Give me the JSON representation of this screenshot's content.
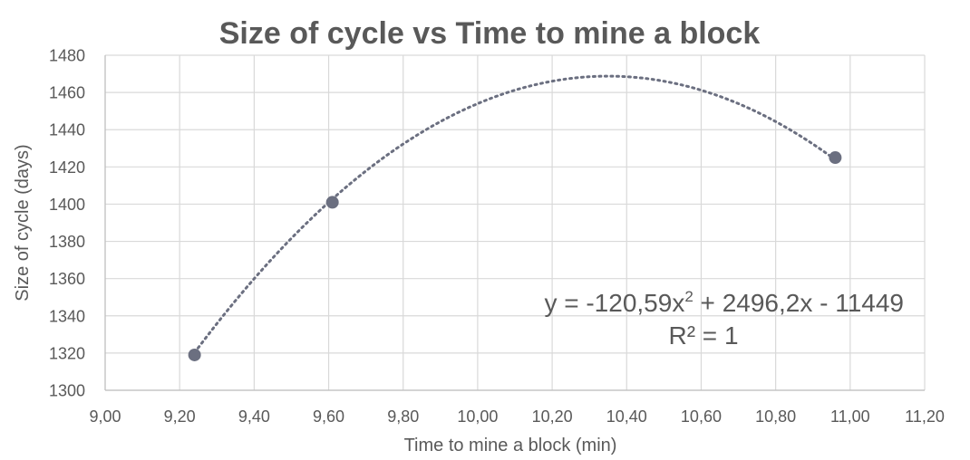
{
  "chart_data": {
    "type": "scatter",
    "title": "Size of cycle vs Time to mine a block",
    "xlabel": "Time to mine a block (min)",
    "ylabel": "Size of cycle (days)",
    "xlim": [
      9.0,
      11.2
    ],
    "ylim": [
      1300,
      1480
    ],
    "x_ticks": [
      "9,00",
      "9,20",
      "9,40",
      "9,60",
      "9,80",
      "10,00",
      "10,20",
      "10,40",
      "10,60",
      "10,80",
      "11,00",
      "11,20"
    ],
    "y_ticks": [
      "1300",
      "1320",
      "1340",
      "1360",
      "1380",
      "1400",
      "1420",
      "1440",
      "1460",
      "1480"
    ],
    "grid": true,
    "series": [
      {
        "name": "Size of cycle",
        "x": [
          9.24,
          9.61,
          10.96
        ],
        "y": [
          1319,
          1401,
          1425
        ],
        "color": "#6b6f80"
      }
    ],
    "trendline": {
      "type": "polynomial",
      "order": 2,
      "coefficients": [
        -120.59,
        2496.2,
        -11449
      ],
      "x_range": [
        9.24,
        10.96
      ],
      "style": "dotted",
      "color": "#6b6f80"
    },
    "annotations": {
      "equation_prefix": "y = -120,59x",
      "equation_exponent": "2",
      "equation_suffix": " + 2496,2x - 11449",
      "r_squared": "R² = 1"
    },
    "colors": {
      "text": "#595959",
      "grid": "#d9d9d9",
      "marker": "#6b6f80"
    }
  }
}
